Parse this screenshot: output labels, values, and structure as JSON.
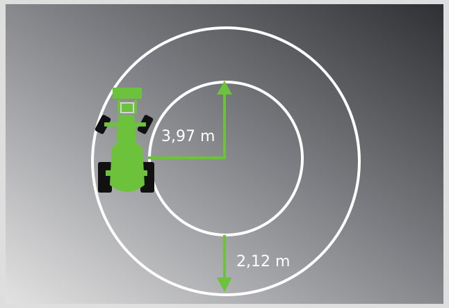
{
  "diagram": {
    "inner_radius_label": "3,97 m",
    "ring_width_label": "2,12 m",
    "colors": {
      "accent": "#6cc23a",
      "rings": "#ffffff",
      "tires": "#111111",
      "background_dark": "#2f3033",
      "background_light": "#e2e2e2"
    }
  }
}
